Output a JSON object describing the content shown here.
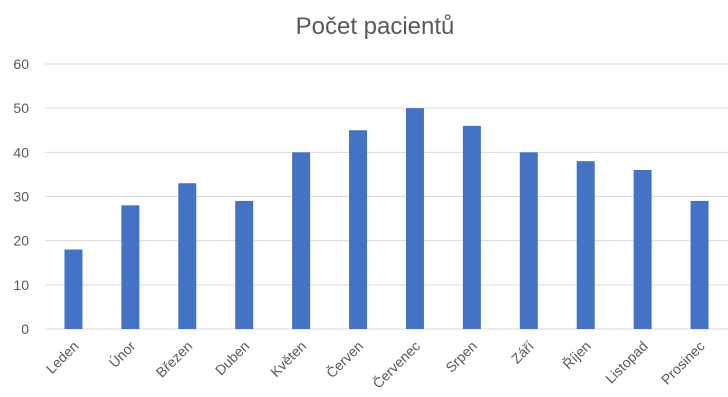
{
  "chart_data": {
    "type": "bar",
    "title": "Počet pacientů",
    "categories": [
      "Leden",
      "Únor",
      "Březen",
      "Duben",
      "Květen",
      "Červen",
      "Červenec",
      "Srpen",
      "Září",
      "Říjen",
      "Listopad",
      "Prosinec"
    ],
    "series": [
      {
        "values": [
          18,
          28,
          33,
          29,
          40,
          45,
          50,
          46,
          40,
          38,
          36,
          29
        ]
      }
    ],
    "ylim": [
      0,
      60
    ],
    "yticks": [
      "0",
      "10",
      "20",
      "30",
      "40",
      "50",
      "60"
    ],
    "grid": true,
    "legend": "none",
    "bar_color": "#4472c4"
  }
}
